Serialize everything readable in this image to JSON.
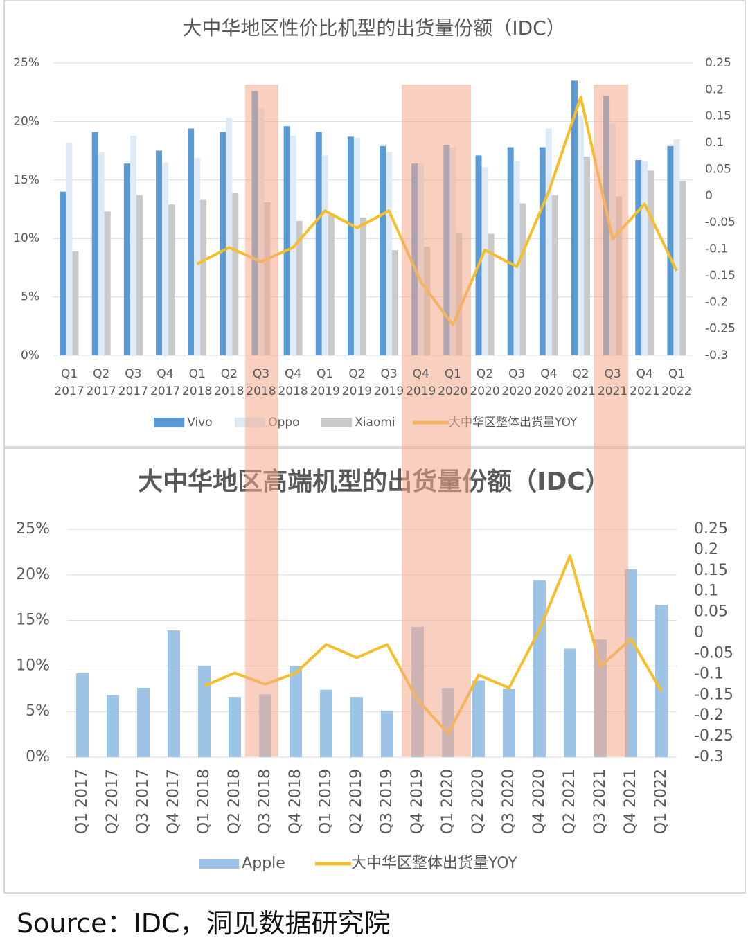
{
  "chart_data": [
    {
      "type": "bar",
      "title": "大中华地区性价比机型的出货量份额（IDC）",
      "categories": [
        "Q1 2017",
        "Q2 2017",
        "Q3 2017",
        "Q4 2017",
        "Q1 2018",
        "Q2 2018",
        "Q3 2018",
        "Q4 2018",
        "Q1 2019",
        "Q2 2019",
        "Q3 2019",
        "Q4 2019",
        "Q1 2020",
        "Q2 2020",
        "Q3 2020",
        "Q4 2020",
        "Q2 2021",
        "Q3 2021",
        "Q4 2021",
        "Q1 2022"
      ],
      "series": [
        {
          "name": "Vivo",
          "color": "#5b9bd5",
          "values": [
            14.0,
            19.1,
            16.4,
            17.5,
            19.4,
            19.1,
            22.6,
            19.6,
            19.1,
            18.7,
            17.9,
            16.4,
            18.0,
            17.1,
            17.8,
            17.8,
            23.5,
            22.2,
            16.7,
            17.9
          ]
        },
        {
          "name": "Oppo",
          "color": "#deebf7",
          "values": [
            18.2,
            17.4,
            18.8,
            16.5,
            16.9,
            20.3,
            21.1,
            18.8,
            17.1,
            18.6,
            17.4,
            16.4,
            17.8,
            16.1,
            16.6,
            19.4,
            20.5,
            19.8,
            16.6,
            18.5
          ]
        },
        {
          "name": "Xiaomi",
          "color": "#c9c9c9",
          "values": [
            8.9,
            12.3,
            13.7,
            12.9,
            13.3,
            13.9,
            13.1,
            11.5,
            12.0,
            11.8,
            9.0,
            9.3,
            10.5,
            10.4,
            13.0,
            13.7,
            17.0,
            13.6,
            15.8,
            14.9
          ]
        },
        {
          "name": "大中华区整体出货量YOY",
          "color": "#f5be2a",
          "type": "line",
          "axis": "y2",
          "values": [
            null,
            null,
            null,
            null,
            -0.128,
            -0.097,
            -0.124,
            -0.097,
            -0.028,
            -0.06,
            -0.028,
            -0.162,
            -0.243,
            -0.102,
            -0.133,
            0.008,
            0.186,
            -0.081,
            -0.015,
            -0.141
          ]
        }
      ],
      "ylim": [
        0,
        25
      ],
      "yticks": [
        {
          "value": 0,
          "label": "0%"
        },
        {
          "value": 5,
          "label": "5%"
        },
        {
          "value": 10,
          "label": "10%"
        },
        {
          "value": 15,
          "label": "15%"
        },
        {
          "value": 20,
          "label": "20%"
        },
        {
          "value": 25,
          "label": "25%"
        }
      ],
      "y2lim": [
        -0.3,
        0.25
      ],
      "y2ticks": [
        -0.3,
        -0.25,
        -0.2,
        -0.15,
        -0.1,
        -0.05,
        0,
        0.05,
        0.1,
        0.15,
        0.2,
        0.25
      ],
      "grid": true
    },
    {
      "type": "bar",
      "title": "大中华地区高端机型的出货量份额（IDC）",
      "categories": [
        "Q1 2017",
        "Q2 2017",
        "Q3 2017",
        "Q4 2017",
        "Q1 2018",
        "Q2 2018",
        "Q3 2018",
        "Q4 2018",
        "Q1 2019",
        "Q2 2019",
        "Q3 2019",
        "Q4 2019",
        "Q1 2020",
        "Q2 2020",
        "Q3 2020",
        "Q4 2020",
        "Q2 2021",
        "Q3 2021",
        "Q4 2021",
        "Q1 2022"
      ],
      "series": [
        {
          "name": "Apple",
          "color": "#9dc3e6",
          "values": [
            9.2,
            6.8,
            7.6,
            13.9,
            10.0,
            6.6,
            6.9,
            10.0,
            7.4,
            6.6,
            5.1,
            14.3,
            7.6,
            8.4,
            7.5,
            19.4,
            11.9,
            12.9,
            20.6,
            16.7
          ]
        },
        {
          "name": "大中华区整体出货量YOY",
          "color": "#f5be2a",
          "type": "line",
          "axis": "y2",
          "values": [
            null,
            null,
            null,
            null,
            -0.128,
            -0.097,
            -0.124,
            -0.097,
            -0.028,
            -0.06,
            -0.028,
            -0.162,
            -0.243,
            -0.102,
            -0.133,
            0.008,
            0.186,
            -0.081,
            -0.015,
            -0.141
          ]
        }
      ],
      "ylim": [
        0,
        25
      ],
      "yticks": [
        {
          "value": 0,
          "label": "0%"
        },
        {
          "value": 5,
          "label": "5%"
        },
        {
          "value": 10,
          "label": "10%"
        },
        {
          "value": 15,
          "label": "15%"
        },
        {
          "value": 20,
          "label": "20%"
        },
        {
          "value": 25,
          "label": "25%"
        }
      ],
      "y2lim": [
        -0.3,
        0.25
      ],
      "y2ticks": [
        -0.3,
        -0.25,
        -0.2,
        -0.15,
        -0.1,
        -0.05,
        0,
        0.05,
        0.1,
        0.15,
        0.2,
        0.25
      ],
      "grid": true
    }
  ],
  "source": "Source：IDC，洞见数据研究院"
}
